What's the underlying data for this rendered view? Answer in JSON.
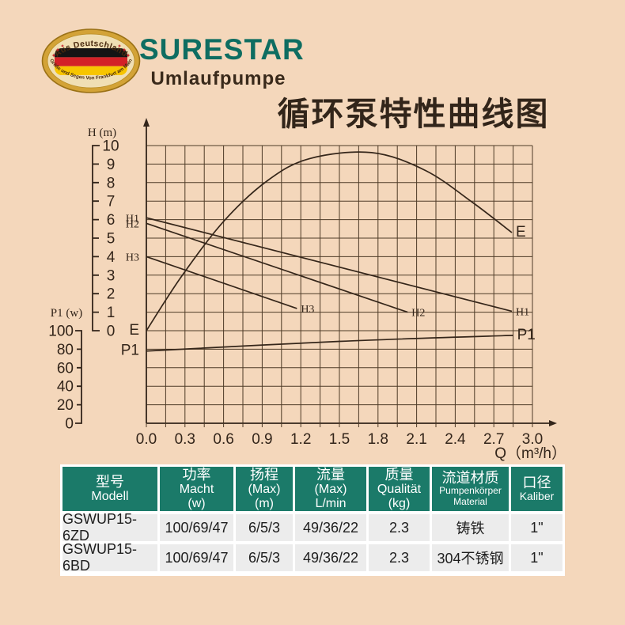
{
  "logo": {
    "badge_top_text": "Aus Deutschland",
    "badge_bottom_text": "Größe und Segen Von Frankfurt am Main",
    "brand": "SURESTAR",
    "subtitle": "Umlaufpumpe"
  },
  "title": "循环泵特性曲线图",
  "colors": {
    "background": "#f4d7bb",
    "brand_teal": "#0e6d61",
    "table_header_teal": "#1b7a69",
    "ink": "#33251a",
    "flag_black": "#141414",
    "flag_red": "#d32127",
    "flag_gold": "#f7c500",
    "badge_gold": "#d3a337",
    "row_gray": "#ececec"
  },
  "chart_data": {
    "type": "line",
    "title": "循环泵特性曲线图",
    "grid": true,
    "x_axis": {
      "label": "Q（m³/h）",
      "ticks": [
        "0.0",
        "0.3",
        "0.6",
        "0.9",
        "1.2",
        "1.5",
        "1.8",
        "2.1",
        "2.4",
        "2.7",
        "3.0"
      ],
      "range": [
        0,
        3.0
      ]
    },
    "y_axis_head": {
      "label": "H (m)",
      "ticks": [
        "10",
        "9",
        "8",
        "7",
        "6",
        "5",
        "4",
        "3",
        "2",
        "1",
        "0"
      ],
      "range": [
        0,
        10
      ]
    },
    "y_axis_power": {
      "label": "P1 (w)",
      "ticks": [
        "100",
        "80",
        "60",
        "40",
        "20",
        "0"
      ],
      "range": [
        0,
        100
      ]
    },
    "series": [
      {
        "name": "E",
        "axis": "head",
        "style": "big",
        "points": [
          [
            0,
            0
          ],
          [
            0.27,
            2.9
          ],
          [
            0.6,
            5.9
          ],
          [
            0.94,
            8.1
          ],
          [
            1.27,
            9.3
          ],
          [
            1.75,
            9.62
          ],
          [
            2.17,
            8.65
          ],
          [
            2.54,
            6.9
          ],
          [
            2.84,
            5.3
          ]
        ]
      },
      {
        "name": "H1",
        "axis": "head",
        "style": "serif",
        "points": [
          [
            0,
            6.1
          ],
          [
            2.84,
            1.05
          ]
        ]
      },
      {
        "name": "H2",
        "axis": "head",
        "style": "serif",
        "points": [
          [
            0,
            5.8
          ],
          [
            2.03,
            1.0
          ]
        ]
      },
      {
        "name": "H3",
        "axis": "head",
        "style": "serif",
        "points": [
          [
            0,
            4.0
          ],
          [
            1.17,
            1.2
          ]
        ]
      },
      {
        "name": "P1",
        "axis": "power",
        "style": "big",
        "points": [
          [
            0,
            78
          ],
          [
            1.5,
            88.5
          ],
          [
            2.85,
            95
          ]
        ]
      }
    ]
  },
  "table": {
    "header": [
      [
        "型号",
        "Modell"
      ],
      [
        "功率",
        "Macht",
        "(w)"
      ],
      [
        "扬程",
        "(Max)",
        "(m)"
      ],
      [
        "流量",
        "(Max)",
        "L/min"
      ],
      [
        "质量",
        "Qualität",
        "(kg)"
      ],
      [
        "流道材质",
        "Pumpenkörper",
        "Material"
      ],
      [
        "口径",
        "Kaliber"
      ]
    ],
    "rows": [
      [
        "GSWUP15-6ZD",
        "100/69/47",
        "6/5/3",
        "49/36/22",
        "2.3",
        "铸铁",
        "1\""
      ],
      [
        "GSWUP15-6BD",
        "100/69/47",
        "6/5/3",
        "49/36/22",
        "2.3",
        "304不锈钢",
        "1\""
      ]
    ]
  }
}
